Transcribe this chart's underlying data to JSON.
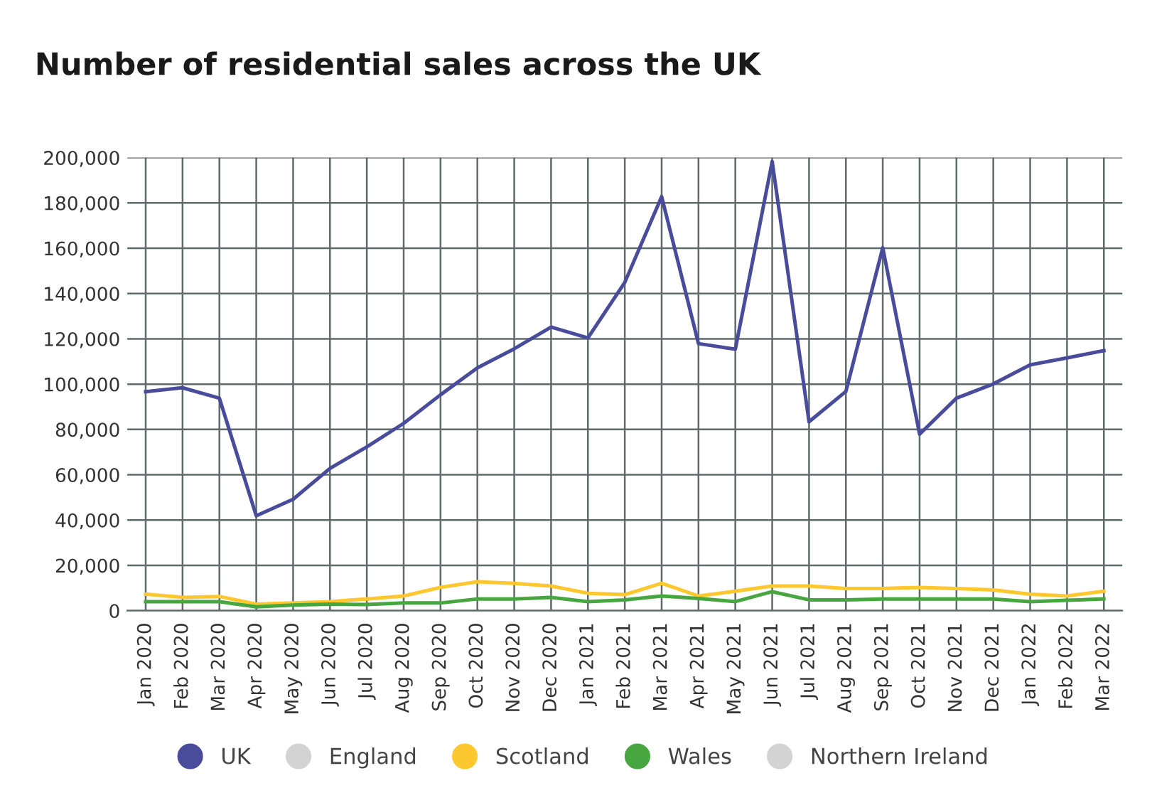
{
  "chart_data": {
    "type": "line",
    "title": "Number of residential sales across the UK",
    "categories": [
      "Jan 2020",
      "Feb 2020",
      "Mar 2020",
      "Apr 2020",
      "May 2020",
      "Jun 2020",
      "Jul 2020",
      "Aug 2020",
      "Sep 2020",
      "Oct 2020",
      "Nov 2020",
      "Dec 2020",
      "Jan 2021",
      "Feb 2021",
      "Mar 2021",
      "Apr 2021",
      "May 2021",
      "Jun 2021",
      "Jul 2021",
      "Aug 2021",
      "Sep 2021",
      "Oct 2021",
      "Nov 2021",
      "Dec 2021",
      "Jan 2022",
      "Feb 2022",
      "Mar 2022"
    ],
    "series": [
      {
        "name": "UK",
        "color": "#484c9b",
        "values": [
          96700,
          98400,
          93800,
          41900,
          49200,
          62800,
          72300,
          82700,
          95300,
          107200,
          115600,
          125200,
          120400,
          144900,
          182800,
          117900,
          115400,
          198300,
          83400,
          96800,
          160200,
          77900,
          93800,
          100100,
          108500,
          111600,
          114800
        ]
      },
      {
        "name": "England",
        "color": "#d3d3d3",
        "values": [
          null,
          null,
          null,
          null,
          null,
          null,
          null,
          null,
          null,
          null,
          null,
          null,
          null,
          null,
          null,
          null,
          null,
          null,
          null,
          null,
          null,
          null,
          null,
          null,
          null,
          null,
          null
        ]
      },
      {
        "name": "Scotland",
        "color": "#fdc82f",
        "values": [
          7300,
          5900,
          6300,
          2900,
          3400,
          4000,
          5200,
          6500,
          10300,
          12800,
          12100,
          10900,
          7700,
          7100,
          12100,
          6500,
          8600,
          10900,
          10900,
          9800,
          9800,
          10300,
          9800,
          9200,
          7300,
          6500,
          8600
        ]
      },
      {
        "name": "Wales",
        "color": "#48a641",
        "values": [
          4000,
          4000,
          4000,
          1700,
          2500,
          2900,
          2700,
          3400,
          3400,
          5200,
          5200,
          5900,
          4000,
          4800,
          6500,
          5400,
          4000,
          8400,
          4800,
          4800,
          5200,
          5200,
          5200,
          5200,
          4000,
          4600,
          5200
        ]
      },
      {
        "name": "Northern Ireland",
        "color": "#d3d3d3",
        "values": [
          null,
          null,
          null,
          null,
          null,
          null,
          null,
          null,
          null,
          null,
          null,
          null,
          null,
          null,
          null,
          null,
          null,
          null,
          null,
          null,
          null,
          null,
          null,
          null,
          null,
          null,
          null
        ]
      }
    ],
    "ylim": [
      0,
      200000
    ],
    "yticks": [
      {
        "value": 0,
        "label": "0"
      },
      {
        "value": 20000,
        "label": "20,000"
      },
      {
        "value": 40000,
        "label": "40,000"
      },
      {
        "value": 60000,
        "label": "60,000"
      },
      {
        "value": 80000,
        "label": "80,000"
      },
      {
        "value": 100000,
        "label": "100,000"
      },
      {
        "value": 120000,
        "label": "120,000"
      },
      {
        "value": 140000,
        "label": "140,000"
      },
      {
        "value": 160000,
        "label": "160,000"
      },
      {
        "value": 180000,
        "label": "180,000"
      },
      {
        "value": 200000,
        "label": "200,000"
      }
    ],
    "grid": true,
    "legend": "bottom",
    "marker": "none",
    "line_style": "solid"
  }
}
